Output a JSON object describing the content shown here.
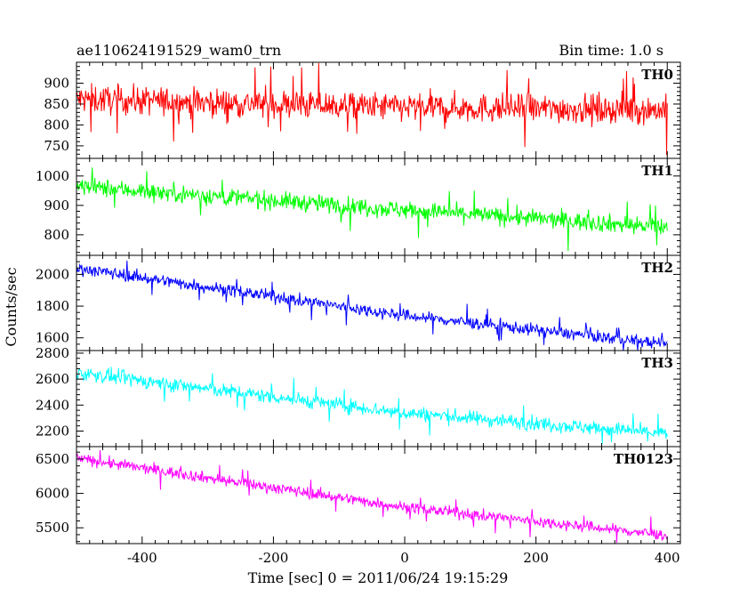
{
  "header": {
    "title": "ae110624191529_wam0_trn",
    "bin_time": "Bin time: 1.0 s"
  },
  "chart_data": {
    "type": "line",
    "xlabel": "Time [sec] 0 = 2011/06/24 19:15:29",
    "ylabel": "Counts/sec",
    "xlim": [
      -500,
      420
    ],
    "x_ticks": [
      -400,
      -200,
      0,
      200,
      400
    ],
    "x_start": -500,
    "x_end": 400,
    "panels": [
      {
        "name": "TH0",
        "color": "#ff0000",
        "ylim": [
          720,
          950
        ],
        "ticks": [
          750,
          800,
          850,
          900
        ],
        "trend": [
          [
            -500,
            862
          ],
          [
            0,
            842
          ],
          [
            400,
            836
          ]
        ],
        "noise": 34,
        "clip_low": 710,
        "clip_high": 960
      },
      {
        "name": "TH1",
        "color": "#00ff00",
        "ylim": [
          730,
          1060
        ],
        "ticks": [
          800,
          900,
          1000
        ],
        "trend": [
          [
            -500,
            965
          ],
          [
            0,
            885
          ],
          [
            400,
            825
          ]
        ],
        "noise": 30,
        "clip_low": 730,
        "clip_high": 1060
      },
      {
        "name": "TH2",
        "color": "#0000ff",
        "ylim": [
          1520,
          2120
        ],
        "ticks": [
          1600,
          1800,
          2000
        ],
        "trend": [
          [
            -500,
            2040
          ],
          [
            0,
            1740
          ],
          [
            400,
            1560
          ]
        ],
        "noise": 38,
        "clip_low": 1520,
        "clip_high": 2120
      },
      {
        "name": "TH3",
        "color": "#00ffff",
        "ylim": [
          2080,
          2820
        ],
        "ticks": [
          2200,
          2400,
          2600,
          2800
        ],
        "trend": [
          [
            -500,
            2650
          ],
          [
            0,
            2340
          ],
          [
            400,
            2180
          ]
        ],
        "noise": 55,
        "clip_low": 2100,
        "clip_high": 2800
      },
      {
        "name": "TH0123",
        "color": "#ff00ff",
        "ylim": [
          5270,
          6680
        ],
        "ticks": [
          5500,
          6000,
          6500
        ],
        "trend": [
          [
            -500,
            6510
          ],
          [
            0,
            5800
          ],
          [
            400,
            5390
          ]
        ],
        "noise": 80,
        "clip_low": 5280,
        "clip_high": 6680
      }
    ]
  }
}
